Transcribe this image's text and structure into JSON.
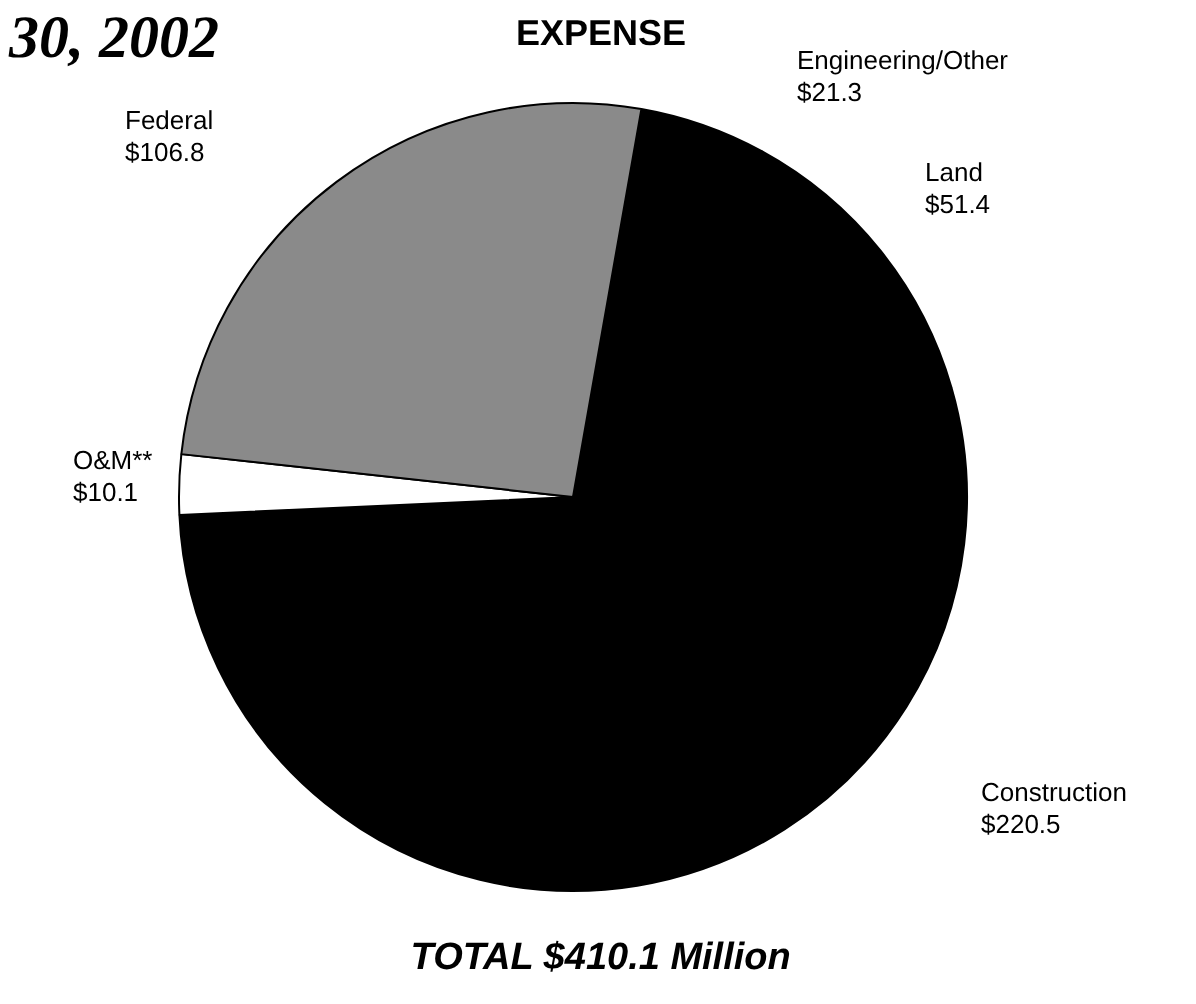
{
  "chart_data": {
    "type": "pie",
    "title": "EXPENSE",
    "categories": [
      "Engineering/Other",
      "Land",
      "Construction",
      "O&M**",
      "Federal"
    ],
    "values": [
      21.3,
      51.4,
      220.5,
      10.1,
      106.8
    ],
    "value_labels": [
      "$21.3",
      "$51.4",
      "$220.5",
      "$10.1",
      "$106.8"
    ],
    "colors": [
      "#000000",
      "#000000",
      "#000000",
      "#ffffff",
      "#8a8a8a"
    ],
    "legend": false,
    "annotations": [
      "30, 2002",
      "TOTAL $410.1 Million"
    ]
  }
}
